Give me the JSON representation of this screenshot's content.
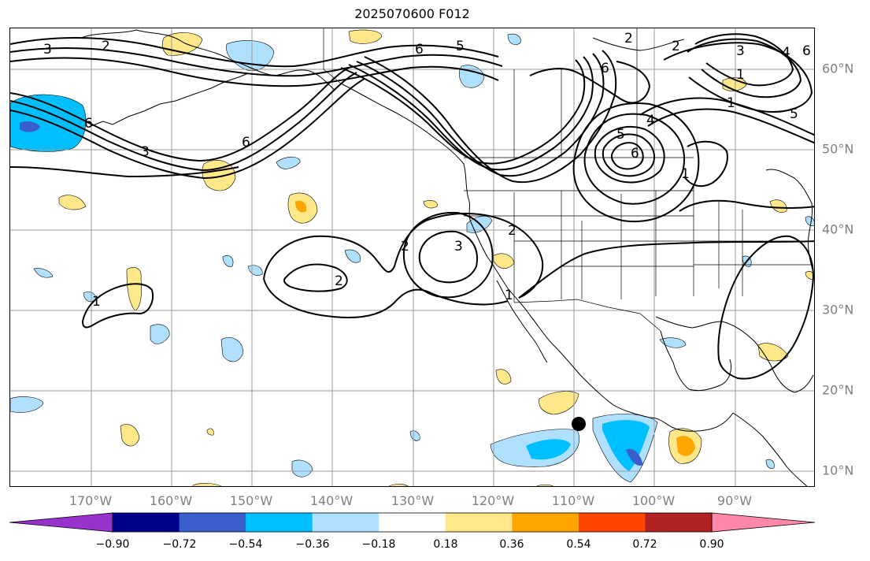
{
  "title": "2025070600 F012",
  "lat_labels": [
    "60°N",
    "50°N",
    "40°N",
    "30°N",
    "20°N",
    "10°N"
  ],
  "lon_labels": [
    "170°W",
    "160°W",
    "150°W",
    "140°W",
    "130°W",
    "120°W",
    "110°W",
    "100°W",
    "90°W"
  ],
  "contour_labels": [
    "3",
    "2",
    "5",
    "6",
    "2",
    "2",
    "3",
    "6",
    "1",
    "4",
    "6",
    "6",
    "3",
    "6",
    "5",
    "4",
    "6",
    "1",
    "2",
    "3",
    "2",
    "2",
    "1",
    "1",
    "1",
    "5"
  ],
  "colorbar": {
    "colors": [
      "#9932cc",
      "#00008b",
      "#3a5fcd",
      "#00bfff",
      "#b0e0ff",
      "#ffffff",
      "#ffe88a",
      "#ffa500",
      "#ff4500",
      "#b22222",
      "#ff88aa"
    ],
    "tick_labels": [
      "−0.90",
      "−0.72",
      "−0.54",
      "−0.36",
      "−0.18",
      "0.18",
      "0.36",
      "0.54",
      "0.72",
      "0.90"
    ]
  },
  "colors": {
    "grid": "#999999",
    "contour": "#000000",
    "coast": "#000000"
  }
}
